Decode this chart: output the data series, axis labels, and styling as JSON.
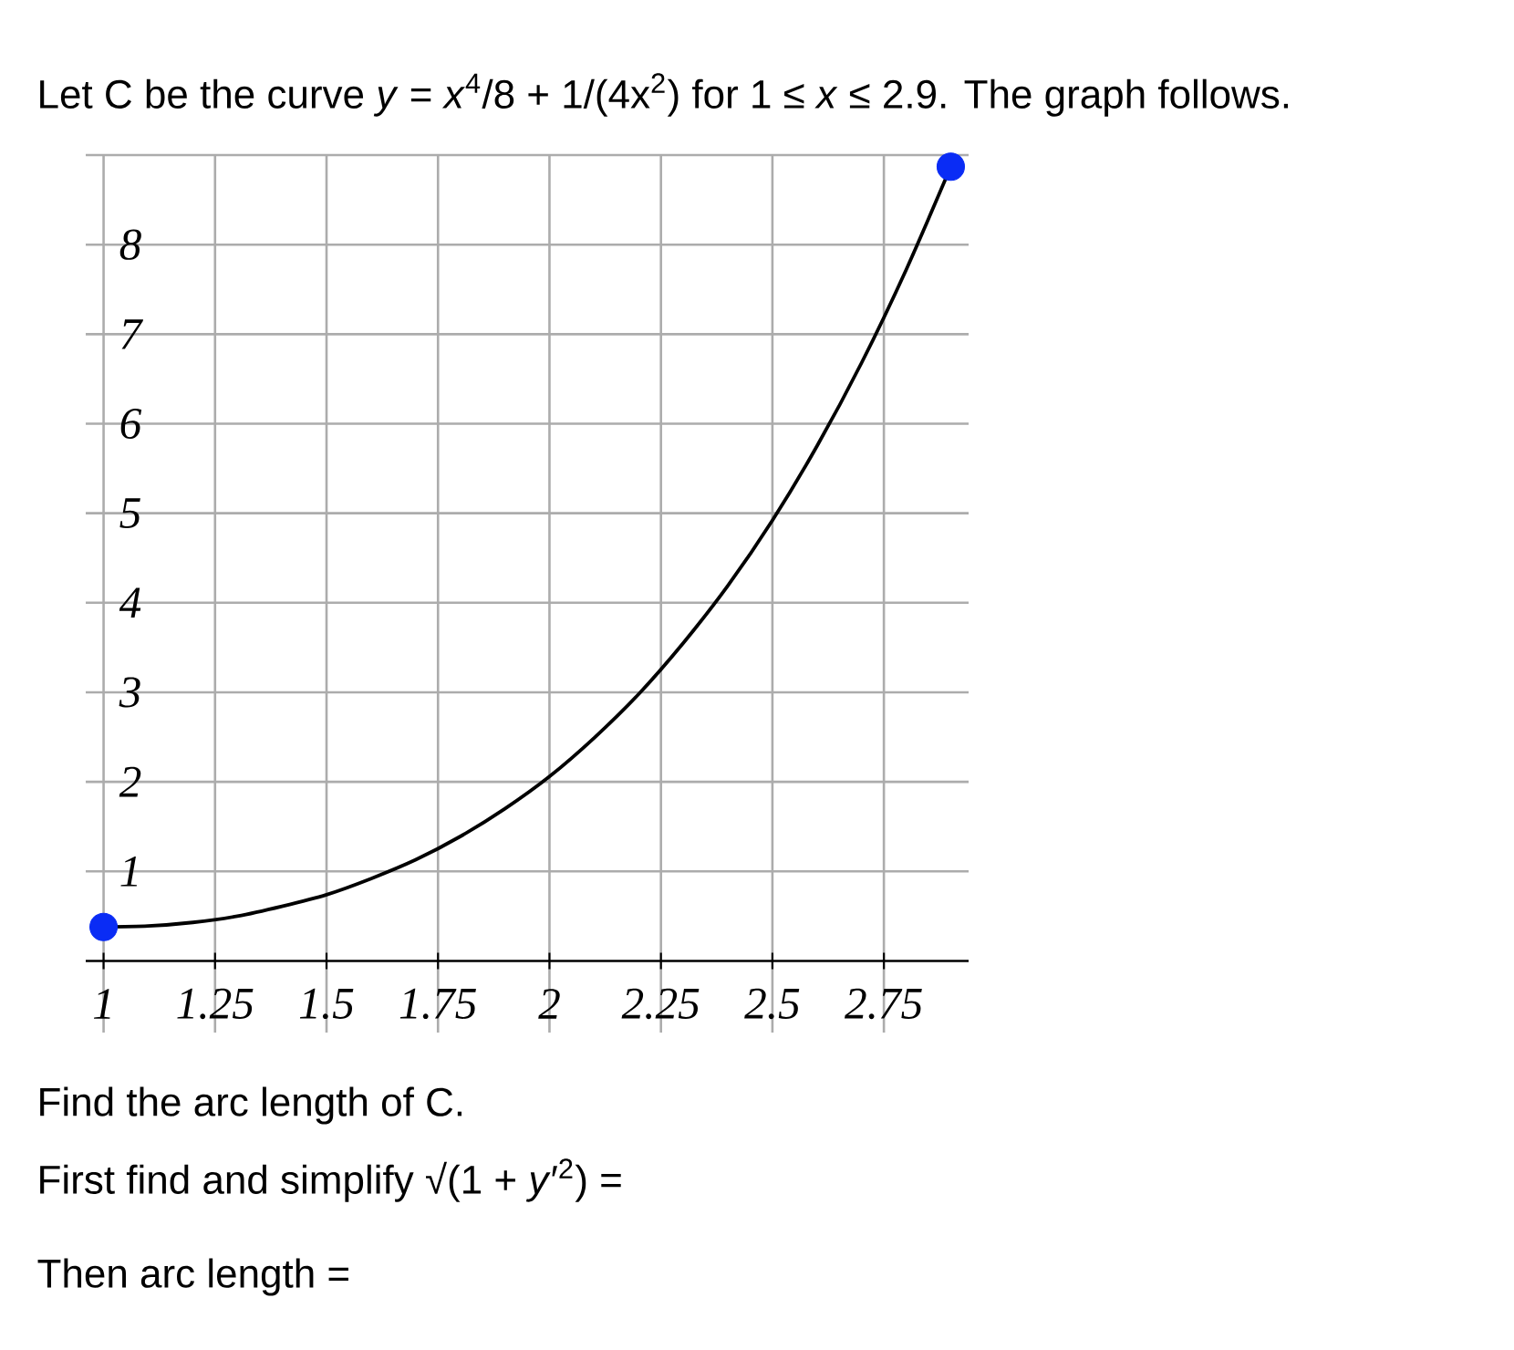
{
  "chart_data": {
    "type": "line",
    "title": "Let C be the curve *y* = *x*$^{4}$/8 + 1/(4x$^{2}$) for 1 ≤ *x* ≤ 2.9. The graph follows.",
    "annotations": [
      "Find the arc length of C.",
      "First find and simplify √(1 + *y*′$^{2}$) =",
      "Then arc length ="
    ],
    "series": [
      {
        "type": "scatter",
        "color": "#0a2cf5",
        "marker": "circle",
        "x": [
          1,
          2.9
        ],
        "values": [
          0.38,
          8.87
        ]
      },
      {
        "color": "#000000",
        "x": [
          1.0,
          1.1,
          1.2,
          1.3,
          1.4,
          1.5,
          1.6,
          1.7,
          1.8,
          1.9,
          2.0,
          2.1,
          2.2,
          2.3,
          2.4,
          2.5,
          2.6,
          2.7,
          2.8,
          2.9
        ],
        "values": [
          0.38,
          0.39,
          0.43,
          0.5,
          0.61,
          0.74,
          0.92,
          1.13,
          1.39,
          1.7,
          2.06,
          2.49,
          2.98,
          3.55,
          4.19,
          4.92,
          5.75,
          6.68,
          7.72,
          8.87
        ]
      }
    ],
    "xlim": [
      0.96,
      2.94
    ],
    "ylim": [
      -0.8,
      9
    ],
    "xticks": [
      1,
      1.25,
      1.5,
      1.75,
      2,
      2.25,
      2.5,
      2.75
    ],
    "yticks": [
      1,
      2,
      3,
      4,
      5,
      6,
      7,
      8,
      {
        "value": 9,
        "label": null
      }
    ],
    "grid": true
  }
}
